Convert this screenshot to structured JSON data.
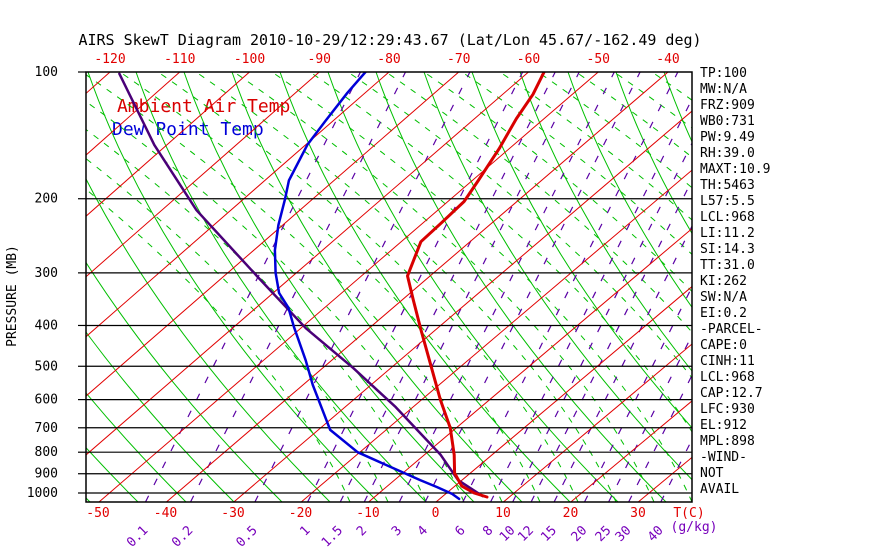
{
  "title": "AIRS SkewT Diagram 2010-10-29/12:29:43.67 (Lat/Lon 45.67/-162.49 deg)",
  "legend": {
    "ambient_label": "Ambient Air Temp",
    "dewpoint_label": "Dew Point Temp",
    "ambient_color": "#d80000",
    "dewpoint_color": "#0000d8"
  },
  "axes": {
    "left_label": "PRESSURE (MB)",
    "pressure_ticks": [
      100,
      200,
      300,
      400,
      500,
      600,
      700,
      800,
      900,
      1000
    ],
    "top_temp_ticks": [
      -120,
      -110,
      -100,
      -90,
      -80,
      -70,
      -60,
      -50,
      -40
    ],
    "bottom_temp_ticks": [
      -50,
      -40,
      -30,
      -20,
      -10,
      0,
      10,
      20,
      30
    ],
    "bottom_temp_unit": "T(C)",
    "mixing_ratio_ticks": [
      "0.1",
      "0.2",
      "0.5",
      "1",
      "1.5",
      "2",
      "3",
      "4",
      "6",
      "8",
      "10",
      "12",
      "15",
      "20",
      "25",
      "30",
      "40"
    ],
    "mixing_ratio_unit": "(g/kg)"
  },
  "indices": [
    "TP:100",
    "MW:N/A",
    "FRZ:909",
    "WB0:731",
    "PW:9.49",
    "RH:39.0",
    "MAXT:10.9",
    "TH:5463",
    "L57:5.5",
    "LCL:968",
    "LI:11.2",
    "SI:14.3",
    "TT:31.0",
    "KI:262",
    "SW:N/A",
    "EI:0.2",
    "-PARCEL-",
    "CAPE:0",
    "CINH:11",
    "LCL:968",
    "CAP:12.7",
    "LFC:930",
    "EL:912",
    "MPL:898",
    "-WIND-",
    "NOT",
    "AVAIL"
  ],
  "chart_data": {
    "type": "line",
    "title": "AIRS SkewT Diagram 2010-10-29/12:29:43.67 (Lat/Lon 45.67/-162.49 deg)",
    "x_axis_label": "T(C)",
    "y_axis_label": "PRESSURE (MB)",
    "y_scale": "log",
    "ylim": [
      100,
      1052
    ],
    "skew": "temperature isotherms tilt 45deg up-right",
    "grid": {
      "isotherms_C": [
        -120,
        -110,
        -100,
        -90,
        -80,
        -70,
        -60,
        -50,
        -40,
        -30,
        -20,
        -10,
        0,
        10,
        20,
        30
      ],
      "isotherm_color": "#e10000",
      "dry_adiabat_color": "#00bf00",
      "moist_adiabat_color": "#00bf00",
      "mixing_ratio_color": "#5a00a5",
      "pressure_line_color": "#000000"
    },
    "series": [
      {
        "name": "Ambient Air Temp",
        "color": "#d80000",
        "points_p_t": [
          [
            100,
            -57.9
          ],
          [
            113,
            -55.7
          ],
          [
            129,
            -54.0
          ],
          [
            152,
            -51.4
          ],
          [
            181,
            -49.0
          ],
          [
            203,
            -47.5
          ],
          [
            228,
            -47.2
          ],
          [
            253,
            -47.0
          ],
          [
            305,
            -43.1
          ],
          [
            348,
            -38.1
          ],
          [
            410,
            -31.8
          ],
          [
            497,
            -24.3
          ],
          [
            601,
            -16.9
          ],
          [
            701,
            -10.6
          ],
          [
            812,
            -5.4
          ],
          [
            897,
            -2.2
          ],
          [
            963,
            1.1
          ],
          [
            1000,
            4.1
          ],
          [
            1022,
            6.7
          ]
        ]
      },
      {
        "name": "Dew Point Temp",
        "color": "#0000d8",
        "points_p_t": [
          [
            100,
            -84.4
          ],
          [
            112,
            -83.5
          ],
          [
            131,
            -81.9
          ],
          [
            149,
            -80.5
          ],
          [
            181,
            -77.1
          ],
          [
            201,
            -74.4
          ],
          [
            231,
            -71.0
          ],
          [
            265,
            -67.2
          ],
          [
            300,
            -63.2
          ],
          [
            335,
            -59.2
          ],
          [
            363,
            -55.3
          ],
          [
            403,
            -51.2
          ],
          [
            484,
            -43.7
          ],
          [
            554,
            -38.4
          ],
          [
            708,
            -28.1
          ],
          [
            800,
            -20.2
          ],
          [
            867,
            -12.8
          ],
          [
            932,
            -6.1
          ],
          [
            968,
            -2.4
          ],
          [
            1005,
            1.0
          ],
          [
            1033,
            2.9
          ]
        ]
      },
      {
        "name": "Parcel",
        "color": "#4a0078",
        "points_p_t": [
          [
            101,
            -120.6
          ],
          [
            149,
            -103.2
          ],
          [
            213,
            -85.7
          ],
          [
            307,
            -65.1
          ],
          [
            406,
            -49.2
          ],
          [
            505,
            -35.3
          ],
          [
            625,
            -22.3
          ],
          [
            812,
            -7.4
          ],
          [
            932,
            -0.5
          ],
          [
            1017,
            5.9
          ]
        ]
      }
    ]
  }
}
